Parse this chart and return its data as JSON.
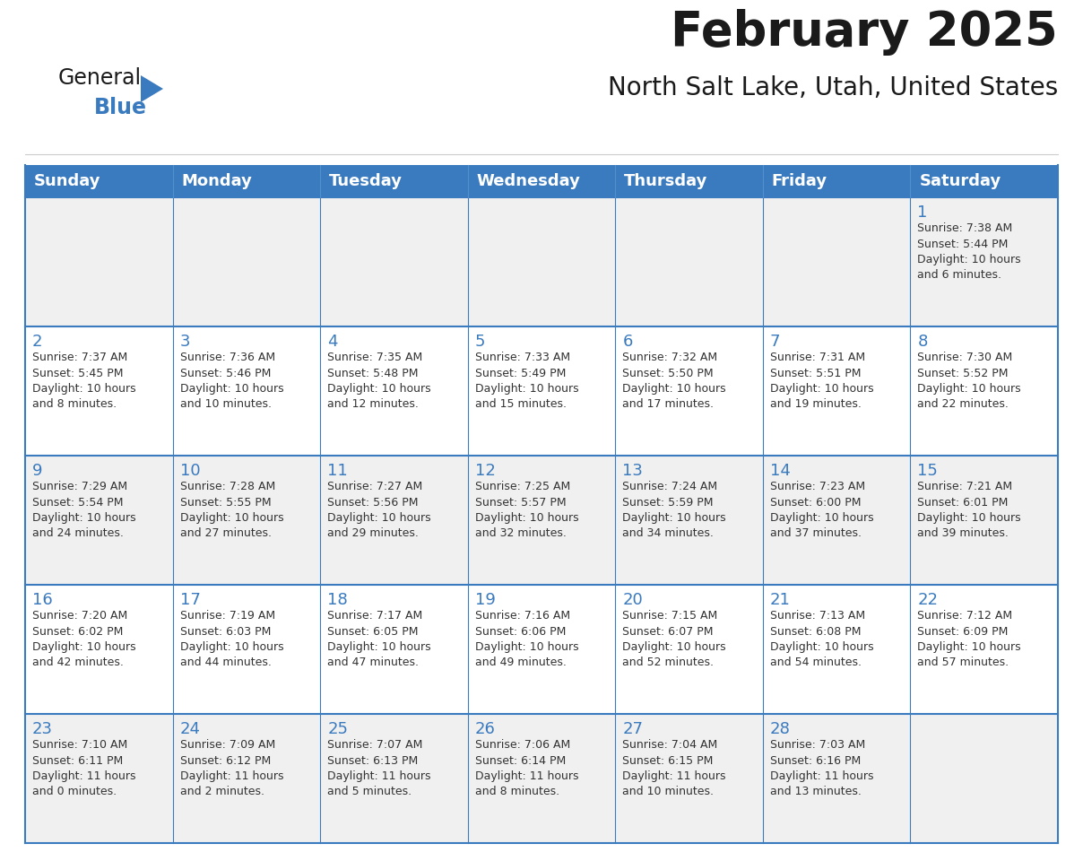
{
  "title": "February 2025",
  "subtitle": "North Salt Lake, Utah, United States",
  "header_color": "#3a7abf",
  "header_text_color": "#ffffff",
  "border_color": "#3a7abf",
  "title_color": "#1a1a1a",
  "subtitle_color": "#1a1a1a",
  "day_number_color": "#3a7abf",
  "info_text_color": "#333333",
  "cell_bg_even": "#f0f0f0",
  "cell_bg_odd": "#ffffff",
  "days_of_week": [
    "Sunday",
    "Monday",
    "Tuesday",
    "Wednesday",
    "Thursday",
    "Friday",
    "Saturday"
  ],
  "weeks": [
    [
      {
        "day": "",
        "info": ""
      },
      {
        "day": "",
        "info": ""
      },
      {
        "day": "",
        "info": ""
      },
      {
        "day": "",
        "info": ""
      },
      {
        "day": "",
        "info": ""
      },
      {
        "day": "",
        "info": ""
      },
      {
        "day": "1",
        "info": "Sunrise: 7:38 AM\nSunset: 5:44 PM\nDaylight: 10 hours\nand 6 minutes."
      }
    ],
    [
      {
        "day": "2",
        "info": "Sunrise: 7:37 AM\nSunset: 5:45 PM\nDaylight: 10 hours\nand 8 minutes."
      },
      {
        "day": "3",
        "info": "Sunrise: 7:36 AM\nSunset: 5:46 PM\nDaylight: 10 hours\nand 10 minutes."
      },
      {
        "day": "4",
        "info": "Sunrise: 7:35 AM\nSunset: 5:48 PM\nDaylight: 10 hours\nand 12 minutes."
      },
      {
        "day": "5",
        "info": "Sunrise: 7:33 AM\nSunset: 5:49 PM\nDaylight: 10 hours\nand 15 minutes."
      },
      {
        "day": "6",
        "info": "Sunrise: 7:32 AM\nSunset: 5:50 PM\nDaylight: 10 hours\nand 17 minutes."
      },
      {
        "day": "7",
        "info": "Sunrise: 7:31 AM\nSunset: 5:51 PM\nDaylight: 10 hours\nand 19 minutes."
      },
      {
        "day": "8",
        "info": "Sunrise: 7:30 AM\nSunset: 5:52 PM\nDaylight: 10 hours\nand 22 minutes."
      }
    ],
    [
      {
        "day": "9",
        "info": "Sunrise: 7:29 AM\nSunset: 5:54 PM\nDaylight: 10 hours\nand 24 minutes."
      },
      {
        "day": "10",
        "info": "Sunrise: 7:28 AM\nSunset: 5:55 PM\nDaylight: 10 hours\nand 27 minutes."
      },
      {
        "day": "11",
        "info": "Sunrise: 7:27 AM\nSunset: 5:56 PM\nDaylight: 10 hours\nand 29 minutes."
      },
      {
        "day": "12",
        "info": "Sunrise: 7:25 AM\nSunset: 5:57 PM\nDaylight: 10 hours\nand 32 minutes."
      },
      {
        "day": "13",
        "info": "Sunrise: 7:24 AM\nSunset: 5:59 PM\nDaylight: 10 hours\nand 34 minutes."
      },
      {
        "day": "14",
        "info": "Sunrise: 7:23 AM\nSunset: 6:00 PM\nDaylight: 10 hours\nand 37 minutes."
      },
      {
        "day": "15",
        "info": "Sunrise: 7:21 AM\nSunset: 6:01 PM\nDaylight: 10 hours\nand 39 minutes."
      }
    ],
    [
      {
        "day": "16",
        "info": "Sunrise: 7:20 AM\nSunset: 6:02 PM\nDaylight: 10 hours\nand 42 minutes."
      },
      {
        "day": "17",
        "info": "Sunrise: 7:19 AM\nSunset: 6:03 PM\nDaylight: 10 hours\nand 44 minutes."
      },
      {
        "day": "18",
        "info": "Sunrise: 7:17 AM\nSunset: 6:05 PM\nDaylight: 10 hours\nand 47 minutes."
      },
      {
        "day": "19",
        "info": "Sunrise: 7:16 AM\nSunset: 6:06 PM\nDaylight: 10 hours\nand 49 minutes."
      },
      {
        "day": "20",
        "info": "Sunrise: 7:15 AM\nSunset: 6:07 PM\nDaylight: 10 hours\nand 52 minutes."
      },
      {
        "day": "21",
        "info": "Sunrise: 7:13 AM\nSunset: 6:08 PM\nDaylight: 10 hours\nand 54 minutes."
      },
      {
        "day": "22",
        "info": "Sunrise: 7:12 AM\nSunset: 6:09 PM\nDaylight: 10 hours\nand 57 minutes."
      }
    ],
    [
      {
        "day": "23",
        "info": "Sunrise: 7:10 AM\nSunset: 6:11 PM\nDaylight: 11 hours\nand 0 minutes."
      },
      {
        "day": "24",
        "info": "Sunrise: 7:09 AM\nSunset: 6:12 PM\nDaylight: 11 hours\nand 2 minutes."
      },
      {
        "day": "25",
        "info": "Sunrise: 7:07 AM\nSunset: 6:13 PM\nDaylight: 11 hours\nand 5 minutes."
      },
      {
        "day": "26",
        "info": "Sunrise: 7:06 AM\nSunset: 6:14 PM\nDaylight: 11 hours\nand 8 minutes."
      },
      {
        "day": "27",
        "info": "Sunrise: 7:04 AM\nSunset: 6:15 PM\nDaylight: 11 hours\nand 10 minutes."
      },
      {
        "day": "28",
        "info": "Sunrise: 7:03 AM\nSunset: 6:16 PM\nDaylight: 11 hours\nand 13 minutes."
      },
      {
        "day": "",
        "info": ""
      }
    ]
  ],
  "logo_text_general": "General",
  "logo_text_blue": "Blue",
  "logo_triangle_color": "#3a7abf",
  "logo_general_color": "#1a1a1a",
  "logo_blue_color": "#3a7abf",
  "title_fontsize": 38,
  "subtitle_fontsize": 20,
  "header_fontsize": 13,
  "day_num_fontsize": 13,
  "info_fontsize": 9
}
